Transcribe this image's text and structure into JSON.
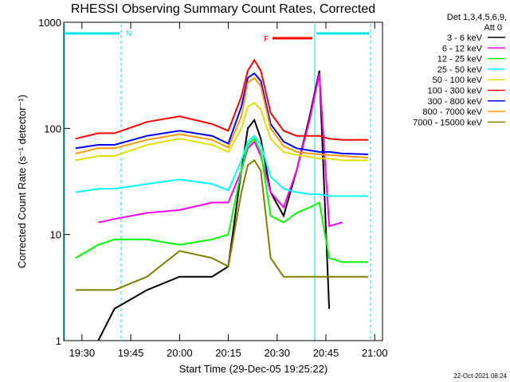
{
  "chart_data": {
    "type": "line",
    "title": "RHESSI Observing Summary Count Rates, Corrected",
    "x_label": "Start Time (29-Dec-05 19:25:22)",
    "y_label": "Corrected Count Rate (s⁻¹ detector⁻¹)",
    "legend_title": [
      "Det 1,3,4,5,6,9,",
      "Att 0"
    ],
    "annotations": [
      "N",
      "F"
    ],
    "footer": "22-Oct-2021 08:24",
    "log_y": true,
    "xlim": [
      1164.4,
      1262.4
    ],
    "xticks": [
      {
        "value": 1170,
        "label": "19:30"
      },
      {
        "value": 1185,
        "label": "19:45"
      },
      {
        "value": 1200,
        "label": "20:00"
      },
      {
        "value": 1215,
        "label": "20:15"
      },
      {
        "value": 1230,
        "label": "20:30"
      },
      {
        "value": 1245,
        "label": "20:45"
      },
      {
        "value": 1260,
        "label": "21:00"
      }
    ],
    "ylim": [
      1,
      1000
    ],
    "yticks": [
      1,
      10,
      100,
      1000
    ],
    "x": [
      1168,
      1175,
      1180,
      1190,
      1200,
      1210,
      1215,
      1219,
      1221,
      1223,
      1225,
      1228,
      1232,
      1236,
      1240,
      1243,
      1246,
      1250,
      1258
    ],
    "series": [
      {
        "name": "3 - 6 keV",
        "color": "#000000",
        "values": [
          null,
          1,
          2,
          3,
          4,
          4,
          5,
          40,
          100,
          120,
          80,
          25,
          15,
          40,
          130,
          350,
          2,
          null,
          null
        ]
      },
      {
        "name": "6 - 12 keV",
        "color": "#ff00ff",
        "values": [
          null,
          13,
          14,
          16,
          17,
          20,
          20,
          40,
          65,
          75,
          55,
          25,
          18,
          40,
          120,
          330,
          12,
          13,
          null
        ]
      },
      {
        "name": "12 - 25 keV",
        "color": "#00ff00",
        "values": [
          6,
          8,
          9,
          9,
          8,
          9,
          10,
          40,
          70,
          80,
          60,
          15,
          13,
          16,
          18,
          20,
          6,
          5.5,
          5.5
        ]
      },
      {
        "name": "25 - 50 keV",
        "color": "#00ffff",
        "values": [
          25,
          27,
          27,
          30,
          33,
          30,
          26,
          50,
          75,
          85,
          70,
          35,
          27,
          25,
          24,
          24,
          23,
          23,
          23
        ]
      },
      {
        "name": "50 - 100 keV",
        "color": "#e0e000",
        "values": [
          50,
          55,
          55,
          70,
          80,
          70,
          60,
          100,
          160,
          175,
          150,
          80,
          60,
          56,
          54,
          52,
          52,
          50,
          50
        ]
      },
      {
        "name": "100 - 300 keV",
        "color": "#ff0000",
        "values": [
          80,
          90,
          90,
          115,
          130,
          110,
          95,
          200,
          350,
          440,
          350,
          140,
          95,
          85,
          85,
          85,
          80,
          78,
          78
        ]
      },
      {
        "name": "300 - 800 keV",
        "color": "#0000ff",
        "values": [
          65,
          70,
          70,
          85,
          95,
          85,
          72,
          160,
          300,
          330,
          280,
          110,
          75,
          65,
          62,
          60,
          60,
          58,
          57
        ]
      },
      {
        "name": "800 - 7000 keV",
        "color": "#ff9900",
        "values": [
          58,
          65,
          65,
          78,
          88,
          78,
          66,
          130,
          270,
          300,
          250,
          100,
          68,
          60,
          58,
          57,
          56,
          55,
          53
        ]
      },
      {
        "name": "7000 - 15000 keV",
        "color": "#808000",
        "values": [
          3,
          3,
          3,
          4,
          7,
          6,
          5,
          25,
          45,
          50,
          40,
          6,
          4,
          4,
          4,
          4,
          4,
          4,
          4
        ]
      }
    ]
  }
}
